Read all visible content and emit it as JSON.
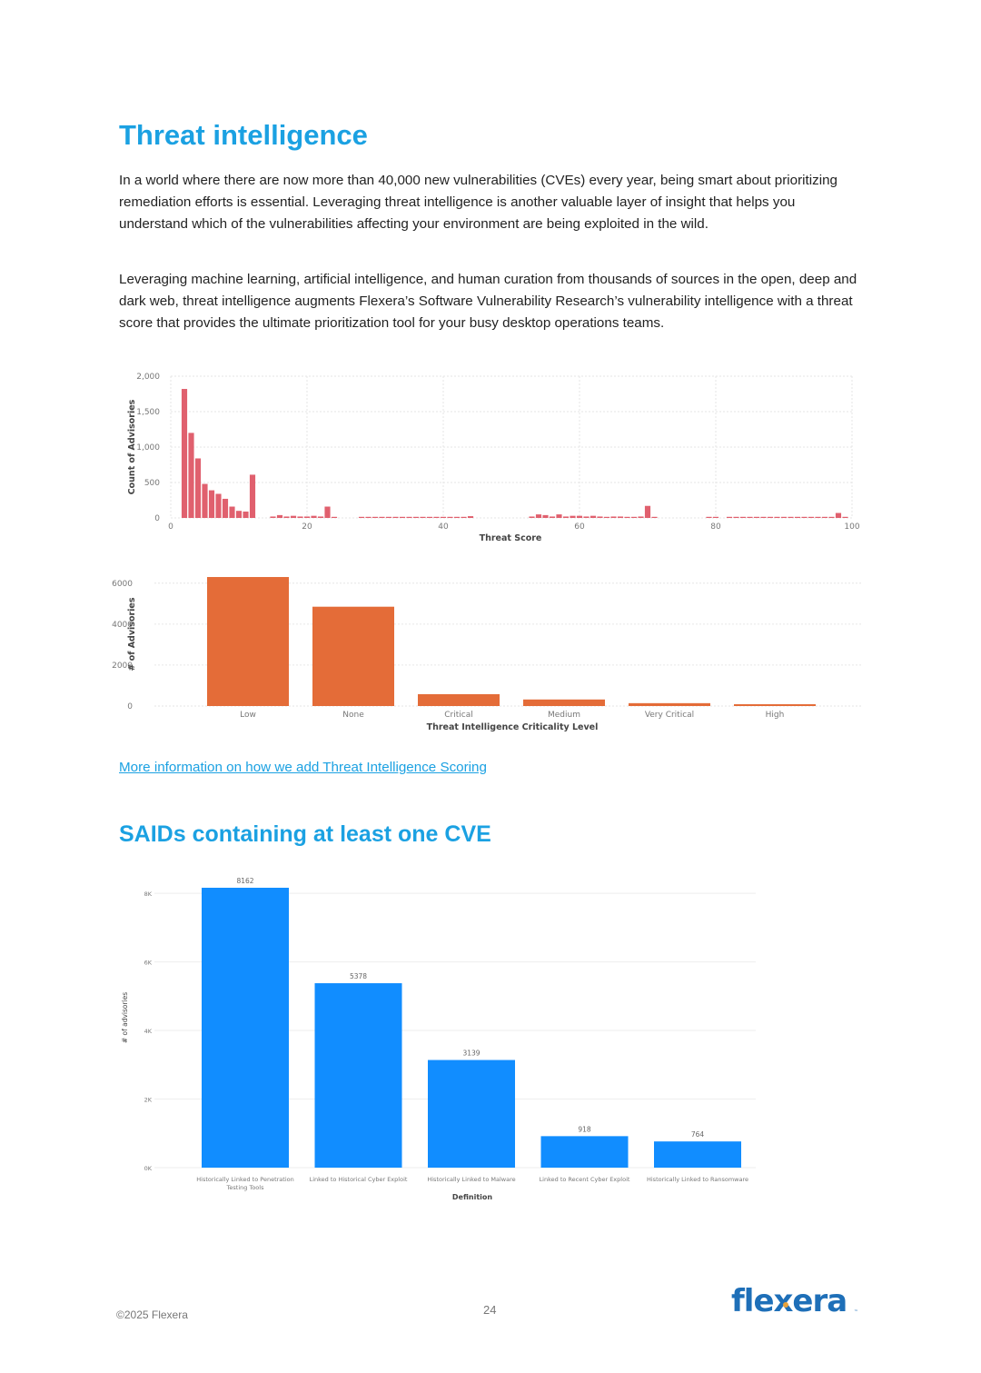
{
  "section1": {
    "title": "Threat intelligence",
    "paragraphs": [
      "In a world where there are now more than 40,000 new vulnerabilities (CVEs) every year, being smart about prioritizing remediation efforts is essential. Leveraging threat intelligence is another valuable layer of insight that helps you understand which of the vulnerabilities affecting your environment are being exploited in the wild.",
      "Leveraging machine learning, artificial intelligence, and human curation from thousands of sources in the open, deep and dark web, threat intelligence augments Flexera’s Software Vulnerability Research’s vulnerability intelligence with a threat score that provides the ultimate prioritization tool for your busy desktop operations teams."
    ],
    "link_text": "More information on how we add Threat Intelligence Scoring"
  },
  "section2": {
    "title": "SAIDs containing at least one CVE"
  },
  "footer": {
    "copyright": "©2025 Flexera",
    "page_number": "24",
    "logo_text": "flexera"
  },
  "colors": {
    "heading": "#1ba1e2",
    "hist_bar": "#e0606e",
    "level_bar": "#e46c38",
    "said_bar": "#118dff"
  },
  "chart_data": [
    {
      "type": "bar",
      "title": "",
      "xlabel": "Threat Score",
      "ylabel": "Count of Advisories",
      "xlim": [
        0,
        100
      ],
      "ylim": [
        0,
        2000
      ],
      "xticks": [
        "0",
        "20",
        "40",
        "60",
        "80",
        "100"
      ],
      "yticks": [
        "0",
        "500",
        "1,000",
        "1,500",
        "2,000"
      ],
      "x": [
        2,
        3,
        4,
        5,
        6,
        7,
        8,
        9,
        10,
        11,
        12,
        15,
        16,
        17,
        18,
        19,
        20,
        21,
        22,
        23,
        24,
        28,
        29,
        30,
        31,
        32,
        33,
        34,
        35,
        36,
        37,
        38,
        39,
        40,
        41,
        42,
        43,
        44,
        53,
        54,
        55,
        56,
        57,
        58,
        59,
        60,
        61,
        62,
        63,
        64,
        65,
        66,
        67,
        68,
        69,
        70,
        71,
        79,
        80,
        82,
        83,
        84,
        85,
        86,
        87,
        88,
        89,
        90,
        91,
        92,
        93,
        94,
        95,
        96,
        97,
        98,
        99
      ],
      "values": [
        1820,
        1200,
        840,
        480,
        390,
        340,
        270,
        160,
        100,
        90,
        610,
        20,
        40,
        20,
        30,
        20,
        20,
        30,
        20,
        160,
        5,
        5,
        5,
        5,
        5,
        5,
        5,
        5,
        5,
        5,
        5,
        5,
        5,
        5,
        5,
        5,
        10,
        25,
        20,
        50,
        40,
        20,
        50,
        20,
        30,
        30,
        20,
        30,
        20,
        10,
        20,
        20,
        10,
        10,
        20,
        170,
        10,
        5,
        5,
        5,
        5,
        5,
        5,
        5,
        5,
        5,
        5,
        5,
        5,
        5,
        5,
        5,
        5,
        5,
        5,
        70,
        5
      ],
      "grid": true
    },
    {
      "type": "bar",
      "title": "",
      "xlabel": "Threat Intelligence Criticality Level",
      "ylabel": "# of Advisories",
      "categories": [
        "Low",
        "None",
        "Critical",
        "Medium",
        "Very Critical",
        "High"
      ],
      "values": [
        6300,
        4850,
        580,
        320,
        140,
        60
      ],
      "ylim": [
        0,
        6700
      ],
      "yticks": [
        "0",
        "2000",
        "4000",
        "6000"
      ],
      "grid": true
    },
    {
      "type": "bar",
      "title": "",
      "xlabel": "Definition",
      "ylabel": "# of advisories",
      "categories": [
        "Historically Linked to Penetration Testing Tools",
        "Linked to Historical Cyber Exploit",
        "Historically Linked to Malware",
        "Linked to Recent Cyber Exploit",
        "Historically Linked to Ransomware"
      ],
      "values": [
        8162,
        5378,
        3139,
        918,
        764
      ],
      "data_labels": [
        "8162",
        "5378",
        "3139",
        "918",
        "764"
      ],
      "ylim": [
        0,
        8400
      ],
      "yticks": [
        "0K",
        "2K",
        "4K",
        "6K",
        "8K"
      ],
      "grid": true
    }
  ]
}
